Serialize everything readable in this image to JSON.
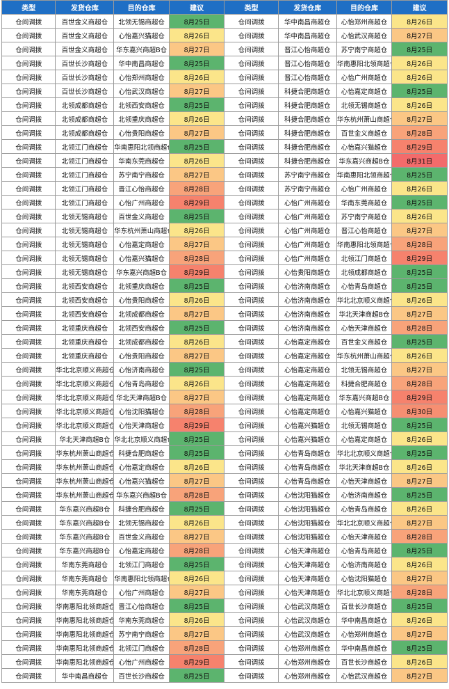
{
  "headers": [
    "类型",
    "发货仓库",
    "目的仓库",
    "建议",
    "类型",
    "发货仓库",
    "目的仓库",
    "建议"
  ],
  "colors": {
    "8月25日": "#5cb46e",
    "8月26日": "#fbe58a",
    "8月27日": "#fbc785",
    "8月28日": "#f8a37a",
    "8月29日": "#f6826d",
    "8月30日": "#f68f72",
    "8月31日": "#f36b6b"
  },
  "rows": [
    [
      [
        "仓间调拨",
        "百世金义商超仓",
        "北领无锡商超仓",
        "8月25日"
      ],
      [
        "仓间调拨",
        "华中南昌商超仓",
        "心怡郑州商超仓",
        "8月26日"
      ]
    ],
    [
      [
        "仓间调拨",
        "百世金义商超仓",
        "心怡嘉兴猫超仓",
        "8月26日"
      ],
      [
        "仓间调拨",
        "华中南昌商超仓",
        "心怡武汉商超仓",
        "8月27日"
      ]
    ],
    [
      [
        "仓间调拨",
        "百世金义商超仓",
        "华东嘉兴商超B仓",
        "8月27日"
      ],
      [
        "仓间调拨",
        "晋江心怡商超仓",
        "苏宁南宁商超仓",
        "8月25日"
      ]
    ],
    [
      [
        "仓间调拨",
        "百世长沙商超仓",
        "华中南昌商超仓",
        "8月25日"
      ],
      [
        "仓间调拨",
        "晋江心怡商超仓",
        "华南惠阳北领商超仓",
        "8月26日"
      ]
    ],
    [
      [
        "仓间调拨",
        "百世长沙商超仓",
        "心怡郑州商超仓",
        "8月26日"
      ],
      [
        "仓间调拨",
        "晋江心怡商超仓",
        "心怡广州商超仓",
        "8月26日"
      ]
    ],
    [
      [
        "仓间调拨",
        "百世长沙商超仓",
        "心怡武汉商超仓",
        "8月27日"
      ],
      [
        "仓间调拨",
        "科捷合肥商超仓",
        "心怡嘉定商超仓",
        "8月25日"
      ]
    ],
    [
      [
        "仓间调拨",
        "北领成都商超仓",
        "北领西安商超仓",
        "8月25日"
      ],
      [
        "仓间调拨",
        "科捷合肥商超仓",
        "北领无锡商超仓",
        "8月26日"
      ]
    ],
    [
      [
        "仓间调拨",
        "北领成都商超仓",
        "北领重庆商超仓",
        "8月26日"
      ],
      [
        "仓间调拨",
        "科捷合肥商超仓",
        "华东杭州萧山商超仓",
        "8月27日"
      ]
    ],
    [
      [
        "仓间调拨",
        "北领成都商超仓",
        "心怡贵阳商超仓",
        "8月27日"
      ],
      [
        "仓间调拨",
        "科捷合肥商超仓",
        "百世金义商超仓",
        "8月28日"
      ]
    ],
    [
      [
        "仓间调拨",
        "北领江门商超仓",
        "华南惠阳北领商超仓",
        "8月25日"
      ],
      [
        "仓间调拨",
        "科捷合肥商超仓",
        "心怡嘉兴猫超仓",
        "8月29日"
      ]
    ],
    [
      [
        "仓间调拨",
        "北领江门商超仓",
        "华南东莞商超仓",
        "8月26日"
      ],
      [
        "仓间调拨",
        "科捷合肥商超仓",
        "华东嘉兴商超B仓",
        "8月31日"
      ]
    ],
    [
      [
        "仓间调拨",
        "北领江门商超仓",
        "苏宁南宁商超仓",
        "8月27日"
      ],
      [
        "仓间调拨",
        "苏宁南宁商超仓",
        "华南惠阳北领商超仓",
        "8月25日"
      ]
    ],
    [
      [
        "仓间调拨",
        "北领江门商超仓",
        "晋江心怡商超仓",
        "8月28日"
      ],
      [
        "仓间调拨",
        "苏宁南宁商超仓",
        "心怡广州商超仓",
        "8月26日"
      ]
    ],
    [
      [
        "仓间调拨",
        "北领江门商超仓",
        "心怡广州商超仓",
        "8月29日"
      ],
      [
        "仓间调拨",
        "心怡广州商超仓",
        "华南东莞商超仓",
        "8月25日"
      ]
    ],
    [
      [
        "仓间调拨",
        "北领无锡商超仓",
        "百世金义商超仓",
        "8月25日"
      ],
      [
        "仓间调拨",
        "心怡广州商超仓",
        "苏宁南宁商超仓",
        "8月26日"
      ]
    ],
    [
      [
        "仓间调拨",
        "北领无锡商超仓",
        "华东杭州萧山商超仓",
        "8月26日"
      ],
      [
        "仓间调拨",
        "心怡广州商超仓",
        "晋江心怡商超仓",
        "8月27日"
      ]
    ],
    [
      [
        "仓间调拨",
        "北领无锡商超仓",
        "心怡嘉定商超仓",
        "8月27日"
      ],
      [
        "仓间调拨",
        "心怡广州商超仓",
        "华南惠阳北领商超仓",
        "8月28日"
      ]
    ],
    [
      [
        "仓间调拨",
        "北领无锡商超仓",
        "心怡嘉兴猫超仓",
        "8月28日"
      ],
      [
        "仓间调拨",
        "心怡广州商超仓",
        "北领江门商超仓",
        "8月29日"
      ]
    ],
    [
      [
        "仓间调拨",
        "北领无锡商超仓",
        "华东嘉兴商超B仓",
        "8月29日"
      ],
      [
        "仓间调拨",
        "心怡贵阳商超仓",
        "北领成都商超仓",
        "8月25日"
      ]
    ],
    [
      [
        "仓间调拨",
        "北领西安商超仓",
        "北领重庆商超仓",
        "8月25日"
      ],
      [
        "仓间调拨",
        "心怡济南商超仓",
        "心怡青岛商超仓",
        "8月25日"
      ]
    ],
    [
      [
        "仓间调拨",
        "北领西安商超仓",
        "心怡贵阳商超仓",
        "8月26日"
      ],
      [
        "仓间调拨",
        "心怡济南商超仓",
        "华北北京顺义商超仓",
        "8月26日"
      ]
    ],
    [
      [
        "仓间调拨",
        "北领西安商超仓",
        "北领成都商超仓",
        "8月27日"
      ],
      [
        "仓间调拨",
        "心怡济南商超仓",
        "华北天津商超B仓",
        "8月27日"
      ]
    ],
    [
      [
        "仓间调拨",
        "北领重庆商超仓",
        "北领西安商超仓",
        "8月25日"
      ],
      [
        "仓间调拨",
        "心怡济南商超仓",
        "心怡天津商超仓",
        "8月28日"
      ]
    ],
    [
      [
        "仓间调拨",
        "北领重庆商超仓",
        "北领成都商超仓",
        "8月26日"
      ],
      [
        "仓间调拨",
        "心怡嘉定商超仓",
        "百世金义商超仓",
        "8月25日"
      ]
    ],
    [
      [
        "仓间调拨",
        "北领重庆商超仓",
        "心怡贵阳商超仓",
        "8月27日"
      ],
      [
        "仓间调拨",
        "心怡嘉定商超仓",
        "华东杭州萧山商超仓",
        "8月26日"
      ]
    ],
    [
      [
        "仓间调拨",
        "华北北京顺义商超仓",
        "心怡济南商超仓",
        "8月25日"
      ],
      [
        "仓间调拨",
        "心怡嘉定商超仓",
        "北领无锡商超仓",
        "8月27日"
      ]
    ],
    [
      [
        "仓间调拨",
        "华北北京顺义商超仓",
        "心怡青岛商超仓",
        "8月26日"
      ],
      [
        "仓间调拨",
        "心怡嘉定商超仓",
        "科捷合肥商超仓",
        "8月28日"
      ]
    ],
    [
      [
        "仓间调拨",
        "华北北京顺义商超仓",
        "华北天津商超B仓",
        "8月27日"
      ],
      [
        "仓间调拨",
        "心怡嘉定商超仓",
        "华东嘉兴商超B仓",
        "8月29日"
      ]
    ],
    [
      [
        "仓间调拨",
        "华北北京顺义商超仓",
        "心怡沈阳猫超仓",
        "8月28日"
      ],
      [
        "仓间调拨",
        "心怡嘉定商超仓",
        "心怡嘉兴猫超仓",
        "8月30日"
      ]
    ],
    [
      [
        "仓间调拨",
        "华北北京顺义商超仓",
        "心怡天津商超仓",
        "8月29日"
      ],
      [
        "仓间调拨",
        "心怡嘉兴猫超仓",
        "北领无锡商超仓",
        "8月25日"
      ]
    ],
    [
      [
        "仓间调拨",
        "华北天津商超B仓",
        "华北北京顺义商超仓",
        "8月25日"
      ],
      [
        "仓间调拨",
        "心怡嘉兴猫超仓",
        "心怡嘉定商超仓",
        "8月26日"
      ]
    ],
    [
      [
        "仓间调拨",
        "华东杭州萧山商超仓",
        "科捷合肥商超仓",
        "8月25日"
      ],
      [
        "仓间调拨",
        "心怡青岛商超仓",
        "华北北京顺义商超仓",
        "8月25日"
      ]
    ],
    [
      [
        "仓间调拨",
        "华东杭州萧山商超仓",
        "心怡嘉定商超仓",
        "8月26日"
      ],
      [
        "仓间调拨",
        "心怡青岛商超仓",
        "华北天津商超B仓",
        "8月26日"
      ]
    ],
    [
      [
        "仓间调拨",
        "华东杭州萧山商超仓",
        "心怡嘉兴猫超仓",
        "8月27日"
      ],
      [
        "仓间调拨",
        "心怡青岛商超仓",
        "心怡天津商超仓",
        "8月27日"
      ]
    ],
    [
      [
        "仓间调拨",
        "华东杭州萧山商超仓",
        "华东嘉兴商超B仓",
        "8月28日"
      ],
      [
        "仓间调拨",
        "心怡沈阳猫超仓",
        "心怡济南商超仓",
        "8月25日"
      ]
    ],
    [
      [
        "仓间调拨",
        "华东嘉兴商超B仓",
        "科捷合肥商超仓",
        "8月25日"
      ],
      [
        "仓间调拨",
        "心怡沈阳猫超仓",
        "心怡青岛商超仓",
        "8月26日"
      ]
    ],
    [
      [
        "仓间调拨",
        "华东嘉兴商超B仓",
        "北领无锡商超仓",
        "8月26日"
      ],
      [
        "仓间调拨",
        "心怡沈阳猫超仓",
        "华北北京顺义商超仓",
        "8月27日"
      ]
    ],
    [
      [
        "仓间调拨",
        "华东嘉兴商超B仓",
        "百世金义商超仓",
        "8月27日"
      ],
      [
        "仓间调拨",
        "心怡沈阳猫超仓",
        "心怡天津商超仓",
        "8月28日"
      ]
    ],
    [
      [
        "仓间调拨",
        "华东嘉兴商超B仓",
        "心怡嘉定商超仓",
        "8月28日"
      ],
      [
        "仓间调拨",
        "心怡天津商超仓",
        "心怡青岛商超仓",
        "8月25日"
      ]
    ],
    [
      [
        "仓间调拨",
        "华南东莞商超仓",
        "北领江门商超仓",
        "8月25日"
      ],
      [
        "仓间调拨",
        "心怡天津商超仓",
        "心怡济南商超仓",
        "8月26日"
      ]
    ],
    [
      [
        "仓间调拨",
        "华南东莞商超仓",
        "华南惠阳北领商超仓",
        "8月26日"
      ],
      [
        "仓间调拨",
        "心怡天津商超仓",
        "心怡沈阳猫超仓",
        "8月27日"
      ]
    ],
    [
      [
        "仓间调拨",
        "华南东莞商超仓",
        "心怡广州商超仓",
        "8月27日"
      ],
      [
        "仓间调拨",
        "心怡天津商超仓",
        "华北北京顺义商超仓",
        "8月28日"
      ]
    ],
    [
      [
        "仓间调拨",
        "华南惠阳北领商超仓",
        "晋江心怡商超仓",
        "8月25日"
      ],
      [
        "仓间调拨",
        "心怡武汉商超仓",
        "百世长沙商超仓",
        "8月25日"
      ]
    ],
    [
      [
        "仓间调拨",
        "华南惠阳北领商超仓",
        "华南东莞商超仓",
        "8月26日"
      ],
      [
        "仓间调拨",
        "心怡武汉商超仓",
        "华中南昌商超仓",
        "8月26日"
      ]
    ],
    [
      [
        "仓间调拨",
        "华南惠阳北领商超仓",
        "苏宁南宁商超仓",
        "8月27日"
      ],
      [
        "仓间调拨",
        "心怡武汉商超仓",
        "心怡郑州商超仓",
        "8月27日"
      ]
    ],
    [
      [
        "仓间调拨",
        "华南惠阳北领商超仓",
        "北领江门商超仓",
        "8月28日"
      ],
      [
        "仓间调拨",
        "心怡郑州商超仓",
        "华中南昌商超仓",
        "8月25日"
      ]
    ],
    [
      [
        "仓间调拨",
        "华南惠阳北领商超仓",
        "心怡广州商超仓",
        "8月29日"
      ],
      [
        "仓间调拨",
        "心怡郑州商超仓",
        "百世长沙商超仓",
        "8月26日"
      ]
    ],
    [
      [
        "仓间调拨",
        "华中南昌商超仓",
        "百世长沙商超仓",
        "8月25日"
      ],
      [
        "仓间调拨",
        "心怡郑州商超仓",
        "心怡武汉商超仓",
        "8月27日"
      ]
    ]
  ]
}
